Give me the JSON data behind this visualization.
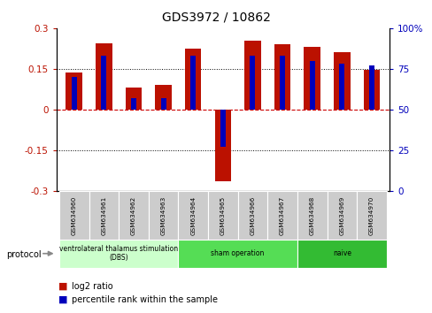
{
  "title": "GDS3972 / 10862",
  "samples": [
    "GSM634960",
    "GSM634961",
    "GSM634962",
    "GSM634963",
    "GSM634964",
    "GSM634965",
    "GSM634966",
    "GSM634967",
    "GSM634968",
    "GSM634969",
    "GSM634970"
  ],
  "log2_ratio": [
    0.135,
    0.245,
    0.08,
    0.09,
    0.225,
    -0.265,
    0.255,
    0.24,
    0.23,
    0.21,
    0.145
  ],
  "percentile_rank": [
    70,
    83,
    57,
    57,
    83,
    27,
    83,
    83,
    80,
    78,
    77
  ],
  "protocols": [
    {
      "label": "ventrolateral thalamus stimulation\n(DBS)",
      "start": 0,
      "end": 3
    },
    {
      "label": "sham operation",
      "start": 4,
      "end": 7
    },
    {
      "label": "naive",
      "start": 8,
      "end": 10
    }
  ],
  "proto_colors": [
    "#ccffcc",
    "#55dd55",
    "#33bb33"
  ],
  "ylim_left": [
    -0.3,
    0.3
  ],
  "ylim_right": [
    0,
    100
  ],
  "yticks_left": [
    -0.3,
    -0.15,
    0,
    0.15,
    0.3
  ],
  "yticks_right": [
    0,
    25,
    50,
    75,
    100
  ],
  "bar_color_red": "#bb1100",
  "bar_color_blue": "#0000bb",
  "hline_color_red": "#cc0000",
  "legend_red": "log2 ratio",
  "legend_blue": "percentile rank within the sample",
  "red_bar_width": 0.55,
  "blue_bar_width": 0.18,
  "plot_bg": "#ffffff",
  "sample_label_bg": "#cccccc"
}
